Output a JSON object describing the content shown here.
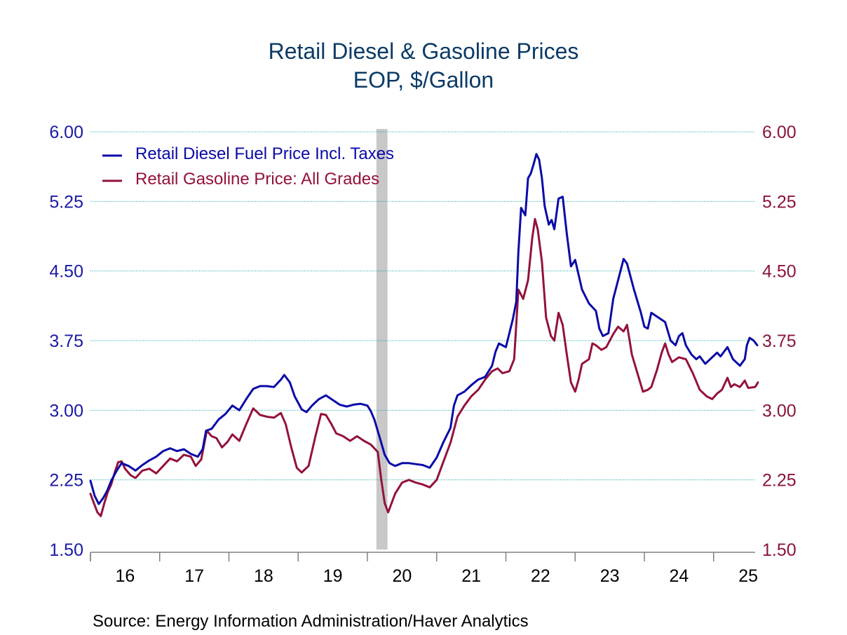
{
  "chart_data": {
    "type": "line",
    "title": "Retail Diesel & Gasoline Prices",
    "subtitle": "EOP, $/Gallon",
    "source": "Source:  Energy Information Administration/Haver Analytics",
    "y_ticks": [
      "1.50",
      "2.25",
      "3.00",
      "3.75",
      "4.50",
      "5.25",
      "6.00"
    ],
    "y2_ticks": [
      "1.50",
      "2.25",
      "3.00",
      "3.75",
      "4.50",
      "5.25",
      "6.00"
    ],
    "ylim": [
      1.5,
      6.0
    ],
    "x_labels": [
      "16",
      "17",
      "18",
      "19",
      "20",
      "21",
      "22",
      "23",
      "24",
      "25"
    ],
    "xlim": [
      2016.0,
      2025.6
    ],
    "grid": true,
    "legend_position": "top-left",
    "recession": {
      "start": 2020.13,
      "end": 2020.29,
      "color": "#c8c8c8"
    },
    "colors": {
      "title": "#0b3a66",
      "left_axis": "#1a1aa6",
      "right_axis": "#8b1538",
      "diesel": "#0a0aa8",
      "gasoline": "#94123a",
      "grid": "#14a3a3",
      "axis": "#808080"
    },
    "series": [
      {
        "name": "Retail Diesel Fuel Price Incl. Taxes",
        "points": [
          [
            2016.0,
            2.24
          ],
          [
            2016.06,
            2.08
          ],
          [
            2016.12,
            1.99
          ],
          [
            2016.18,
            2.05
          ],
          [
            2016.24,
            2.13
          ],
          [
            2016.3,
            2.24
          ],
          [
            2016.38,
            2.35
          ],
          [
            2016.45,
            2.43
          ],
          [
            2016.55,
            2.4
          ],
          [
            2016.65,
            2.35
          ],
          [
            2016.75,
            2.41
          ],
          [
            2016.85,
            2.46
          ],
          [
            2016.95,
            2.5
          ],
          [
            2017.05,
            2.56
          ],
          [
            2017.15,
            2.59
          ],
          [
            2017.25,
            2.56
          ],
          [
            2017.35,
            2.58
          ],
          [
            2017.45,
            2.53
          ],
          [
            2017.55,
            2.5
          ],
          [
            2017.62,
            2.58
          ],
          [
            2017.67,
            2.78
          ],
          [
            2017.75,
            2.8
          ],
          [
            2017.85,
            2.9
          ],
          [
            2017.95,
            2.96
          ],
          [
            2018.05,
            3.05
          ],
          [
            2018.15,
            3.0
          ],
          [
            2018.25,
            3.12
          ],
          [
            2018.35,
            3.23
          ],
          [
            2018.45,
            3.26
          ],
          [
            2018.55,
            3.26
          ],
          [
            2018.65,
            3.25
          ],
          [
            2018.75,
            3.33
          ],
          [
            2018.8,
            3.38
          ],
          [
            2018.88,
            3.3
          ],
          [
            2018.95,
            3.15
          ],
          [
            2019.05,
            3.01
          ],
          [
            2019.12,
            2.98
          ],
          [
            2019.2,
            3.05
          ],
          [
            2019.3,
            3.12
          ],
          [
            2019.4,
            3.16
          ],
          [
            2019.5,
            3.11
          ],
          [
            2019.6,
            3.06
          ],
          [
            2019.7,
            3.04
          ],
          [
            2019.8,
            3.06
          ],
          [
            2019.9,
            3.07
          ],
          [
            2020.0,
            3.05
          ],
          [
            2020.05,
            2.99
          ],
          [
            2020.1,
            2.9
          ],
          [
            2020.18,
            2.7
          ],
          [
            2020.25,
            2.52
          ],
          [
            2020.32,
            2.43
          ],
          [
            2020.4,
            2.4
          ],
          [
            2020.5,
            2.43
          ],
          [
            2020.6,
            2.43
          ],
          [
            2020.7,
            2.42
          ],
          [
            2020.8,
            2.41
          ],
          [
            2020.9,
            2.38
          ],
          [
            2021.0,
            2.49
          ],
          [
            2021.1,
            2.66
          ],
          [
            2021.2,
            2.81
          ],
          [
            2021.25,
            3.05
          ],
          [
            2021.3,
            3.16
          ],
          [
            2021.4,
            3.2
          ],
          [
            2021.5,
            3.27
          ],
          [
            2021.6,
            3.33
          ],
          [
            2021.7,
            3.36
          ],
          [
            2021.8,
            3.48
          ],
          [
            2021.85,
            3.63
          ],
          [
            2021.9,
            3.72
          ],
          [
            2022.0,
            3.68
          ],
          [
            2022.1,
            3.98
          ],
          [
            2022.15,
            4.17
          ],
          [
            2022.18,
            4.7
          ],
          [
            2022.22,
            5.18
          ],
          [
            2022.28,
            5.1
          ],
          [
            2022.32,
            5.5
          ],
          [
            2022.36,
            5.55
          ],
          [
            2022.4,
            5.65
          ],
          [
            2022.44,
            5.76
          ],
          [
            2022.48,
            5.7
          ],
          [
            2022.52,
            5.5
          ],
          [
            2022.56,
            5.2
          ],
          [
            2022.62,
            5.0
          ],
          [
            2022.66,
            5.05
          ],
          [
            2022.7,
            4.95
          ],
          [
            2022.76,
            5.28
          ],
          [
            2022.82,
            5.3
          ],
          [
            2022.88,
            4.9
          ],
          [
            2022.94,
            4.55
          ],
          [
            2023.0,
            4.62
          ],
          [
            2023.1,
            4.3
          ],
          [
            2023.2,
            4.15
          ],
          [
            2023.3,
            4.07
          ],
          [
            2023.35,
            3.88
          ],
          [
            2023.4,
            3.8
          ],
          [
            2023.48,
            3.83
          ],
          [
            2023.55,
            4.2
          ],
          [
            2023.62,
            4.4
          ],
          [
            2023.7,
            4.63
          ],
          [
            2023.75,
            4.58
          ],
          [
            2023.85,
            4.3
          ],
          [
            2023.95,
            4.05
          ],
          [
            2024.0,
            3.9
          ],
          [
            2024.05,
            3.88
          ],
          [
            2024.1,
            4.05
          ],
          [
            2024.2,
            4.0
          ],
          [
            2024.3,
            3.95
          ],
          [
            2024.38,
            3.75
          ],
          [
            2024.45,
            3.7
          ],
          [
            2024.5,
            3.8
          ],
          [
            2024.55,
            3.83
          ],
          [
            2024.6,
            3.7
          ],
          [
            2024.68,
            3.6
          ],
          [
            2024.75,
            3.55
          ],
          [
            2024.8,
            3.58
          ],
          [
            2024.88,
            3.5
          ],
          [
            2024.95,
            3.55
          ],
          [
            2025.05,
            3.62
          ],
          [
            2025.1,
            3.58
          ],
          [
            2025.2,
            3.68
          ],
          [
            2025.28,
            3.55
          ],
          [
            2025.38,
            3.48
          ],
          [
            2025.45,
            3.55
          ],
          [
            2025.48,
            3.7
          ],
          [
            2025.52,
            3.78
          ],
          [
            2025.58,
            3.75
          ],
          [
            2025.63,
            3.7
          ]
        ]
      },
      {
        "name": "Retail Gasoline Price: All Grades",
        "points": [
          [
            2016.0,
            2.1
          ],
          [
            2016.05,
            2.0
          ],
          [
            2016.1,
            1.9
          ],
          [
            2016.15,
            1.86
          ],
          [
            2016.2,
            2.0
          ],
          [
            2016.25,
            2.12
          ],
          [
            2016.3,
            2.2
          ],
          [
            2016.35,
            2.33
          ],
          [
            2016.4,
            2.44
          ],
          [
            2016.45,
            2.45
          ],
          [
            2016.5,
            2.37
          ],
          [
            2016.58,
            2.3
          ],
          [
            2016.65,
            2.27
          ],
          [
            2016.75,
            2.35
          ],
          [
            2016.85,
            2.37
          ],
          [
            2016.95,
            2.32
          ],
          [
            2017.05,
            2.4
          ],
          [
            2017.15,
            2.48
          ],
          [
            2017.25,
            2.45
          ],
          [
            2017.35,
            2.52
          ],
          [
            2017.45,
            2.5
          ],
          [
            2017.52,
            2.4
          ],
          [
            2017.6,
            2.47
          ],
          [
            2017.68,
            2.78
          ],
          [
            2017.75,
            2.72
          ],
          [
            2017.82,
            2.7
          ],
          [
            2017.9,
            2.6
          ],
          [
            2017.98,
            2.66
          ],
          [
            2018.05,
            2.74
          ],
          [
            2018.15,
            2.67
          ],
          [
            2018.25,
            2.85
          ],
          [
            2018.35,
            3.02
          ],
          [
            2018.45,
            2.95
          ],
          [
            2018.55,
            2.93
          ],
          [
            2018.65,
            2.92
          ],
          [
            2018.75,
            2.97
          ],
          [
            2018.82,
            2.85
          ],
          [
            2018.9,
            2.6
          ],
          [
            2018.98,
            2.38
          ],
          [
            2019.05,
            2.33
          ],
          [
            2019.15,
            2.4
          ],
          [
            2019.25,
            2.72
          ],
          [
            2019.33,
            2.96
          ],
          [
            2019.4,
            2.95
          ],
          [
            2019.48,
            2.85
          ],
          [
            2019.55,
            2.75
          ],
          [
            2019.65,
            2.72
          ],
          [
            2019.75,
            2.67
          ],
          [
            2019.85,
            2.72
          ],
          [
            2019.95,
            2.67
          ],
          [
            2020.05,
            2.63
          ],
          [
            2020.15,
            2.55
          ],
          [
            2020.2,
            2.25
          ],
          [
            2020.25,
            2.0
          ],
          [
            2020.3,
            1.9
          ],
          [
            2020.4,
            2.1
          ],
          [
            2020.5,
            2.22
          ],
          [
            2020.6,
            2.25
          ],
          [
            2020.7,
            2.22
          ],
          [
            2020.8,
            2.2
          ],
          [
            2020.9,
            2.17
          ],
          [
            2021.0,
            2.25
          ],
          [
            2021.1,
            2.45
          ],
          [
            2021.2,
            2.65
          ],
          [
            2021.3,
            2.93
          ],
          [
            2021.4,
            3.05
          ],
          [
            2021.5,
            3.15
          ],
          [
            2021.6,
            3.22
          ],
          [
            2021.7,
            3.33
          ],
          [
            2021.8,
            3.42
          ],
          [
            2021.88,
            3.45
          ],
          [
            2021.95,
            3.4
          ],
          [
            2022.05,
            3.42
          ],
          [
            2022.12,
            3.55
          ],
          [
            2022.18,
            4.3
          ],
          [
            2022.25,
            4.2
          ],
          [
            2022.32,
            4.4
          ],
          [
            2022.38,
            4.85
          ],
          [
            2022.42,
            5.06
          ],
          [
            2022.46,
            4.95
          ],
          [
            2022.52,
            4.6
          ],
          [
            2022.58,
            4.0
          ],
          [
            2022.65,
            3.8
          ],
          [
            2022.7,
            3.75
          ],
          [
            2022.76,
            4.05
          ],
          [
            2022.82,
            3.92
          ],
          [
            2022.88,
            3.6
          ],
          [
            2022.94,
            3.3
          ],
          [
            2023.0,
            3.2
          ],
          [
            2023.05,
            3.33
          ],
          [
            2023.1,
            3.5
          ],
          [
            2023.2,
            3.55
          ],
          [
            2023.25,
            3.72
          ],
          [
            2023.3,
            3.7
          ],
          [
            2023.38,
            3.65
          ],
          [
            2023.45,
            3.68
          ],
          [
            2023.55,
            3.82
          ],
          [
            2023.62,
            3.9
          ],
          [
            2023.7,
            3.85
          ],
          [
            2023.75,
            3.92
          ],
          [
            2023.82,
            3.6
          ],
          [
            2023.9,
            3.4
          ],
          [
            2023.98,
            3.2
          ],
          [
            2024.05,
            3.22
          ],
          [
            2024.1,
            3.25
          ],
          [
            2024.18,
            3.43
          ],
          [
            2024.25,
            3.62
          ],
          [
            2024.3,
            3.72
          ],
          [
            2024.35,
            3.6
          ],
          [
            2024.4,
            3.52
          ],
          [
            2024.5,
            3.57
          ],
          [
            2024.6,
            3.55
          ],
          [
            2024.7,
            3.4
          ],
          [
            2024.8,
            3.22
          ],
          [
            2024.9,
            3.15
          ],
          [
            2024.98,
            3.12
          ],
          [
            2025.05,
            3.18
          ],
          [
            2025.12,
            3.22
          ],
          [
            2025.2,
            3.35
          ],
          [
            2025.25,
            3.25
          ],
          [
            2025.3,
            3.28
          ],
          [
            2025.38,
            3.25
          ],
          [
            2025.45,
            3.32
          ],
          [
            2025.5,
            3.24
          ],
          [
            2025.6,
            3.25
          ],
          [
            2025.64,
            3.3
          ]
        ]
      }
    ]
  }
}
